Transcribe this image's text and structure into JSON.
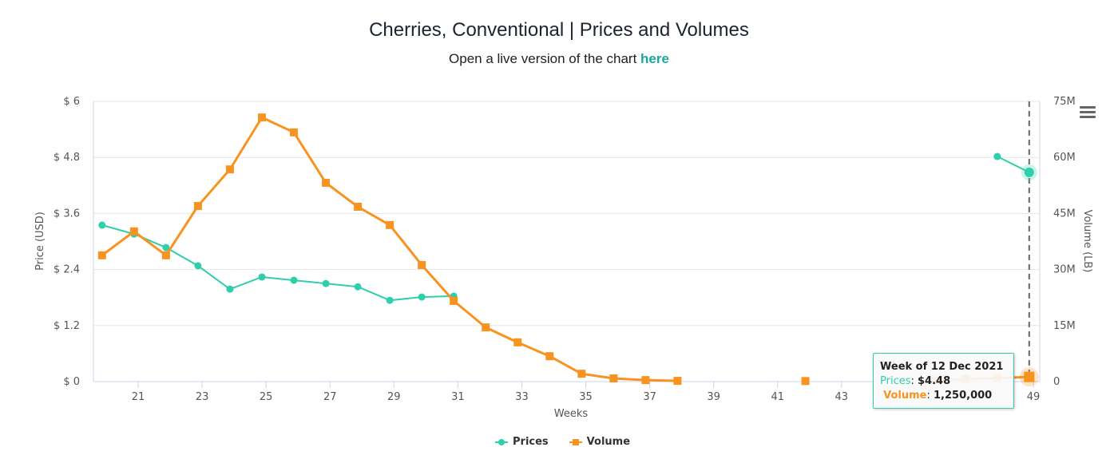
{
  "header": {
    "title": "Cherries, Conventional | Prices and Volumes",
    "subtitle_prefix": "Open a live version of the chart ",
    "subtitle_link": "here"
  },
  "menu": {
    "icon": "hamburger-menu-icon"
  },
  "colors": {
    "prices": "#2ecfaa",
    "volume": "#f7931e",
    "link": "#1aa7a0"
  },
  "tooltip": {
    "header": "Week of 12 Dec 2021",
    "prices_label": "Prices",
    "prices_value": "$4.48",
    "volume_label": "Volume",
    "volume_value": "1,250,000"
  },
  "legend": [
    {
      "name": "Prices"
    },
    {
      "name": "Volume"
    }
  ],
  "chart_data": {
    "type": "line",
    "title": "Cherries, Conventional | Prices and Volumes",
    "subtitle": "Open a live version of the chart here",
    "xlabel": "Weeks",
    "ylabel": "Price (USD)",
    "y2label": "Volume (LB)",
    "xlim": [
      19.6,
      49.2
    ],
    "x_ticks": [
      21,
      23,
      25,
      27,
      29,
      31,
      33,
      35,
      37,
      39,
      41,
      43,
      49
    ],
    "ylim": [
      0,
      6
    ],
    "y_ticks": [
      "$ 0",
      "$ 1.2",
      "$ 2.4",
      "$ 3.6",
      "$ 4.8",
      "$ 6"
    ],
    "y_tick_values": [
      0,
      1.2,
      2.4,
      3.6,
      4.8,
      6
    ],
    "y2lim": [
      0,
      75000000
    ],
    "y2_ticks": [
      "0",
      "15M",
      "30M",
      "45M",
      "60M",
      "75M"
    ],
    "y2_tick_values": [
      0,
      15000000,
      30000000,
      45000000,
      60000000,
      75000000
    ],
    "grid": true,
    "legend_position": "bottom-center",
    "hover_week": 49,
    "series": [
      {
        "name": "Prices",
        "axis": "left",
        "marker": "circle",
        "points": [
          [
            20,
            3.35
          ],
          [
            21,
            3.16
          ],
          [
            22,
            2.87
          ],
          [
            23,
            2.48
          ],
          [
            24,
            1.98
          ],
          [
            25,
            2.24
          ],
          [
            26,
            2.17
          ],
          [
            27,
            2.1
          ],
          [
            28,
            2.03
          ],
          [
            29,
            1.74
          ],
          [
            30,
            1.81
          ],
          [
            31,
            1.83
          ],
          [
            48,
            4.82
          ],
          [
            49,
            4.48
          ]
        ]
      },
      {
        "name": "Volume",
        "axis": "right",
        "marker": "square",
        "points": [
          [
            20,
            33800000
          ],
          [
            21,
            40200000
          ],
          [
            22,
            33800000
          ],
          [
            23,
            47000000
          ],
          [
            24,
            56800000
          ],
          [
            25,
            70700000
          ],
          [
            26,
            66700000
          ],
          [
            27,
            53200000
          ],
          [
            28,
            46800000
          ],
          [
            29,
            41900000
          ],
          [
            30,
            31200000
          ],
          [
            31,
            21600000
          ],
          [
            32,
            14500000
          ],
          [
            33,
            10500000
          ],
          [
            34,
            6800000
          ],
          [
            35,
            2100000
          ],
          [
            36,
            850000
          ],
          [
            37,
            400000
          ],
          [
            38,
            200000
          ],
          [
            42,
            150000
          ],
          [
            46,
            300000
          ],
          [
            47,
            700000
          ],
          [
            48,
            900000
          ],
          [
            49,
            1250000
          ]
        ]
      }
    ]
  }
}
